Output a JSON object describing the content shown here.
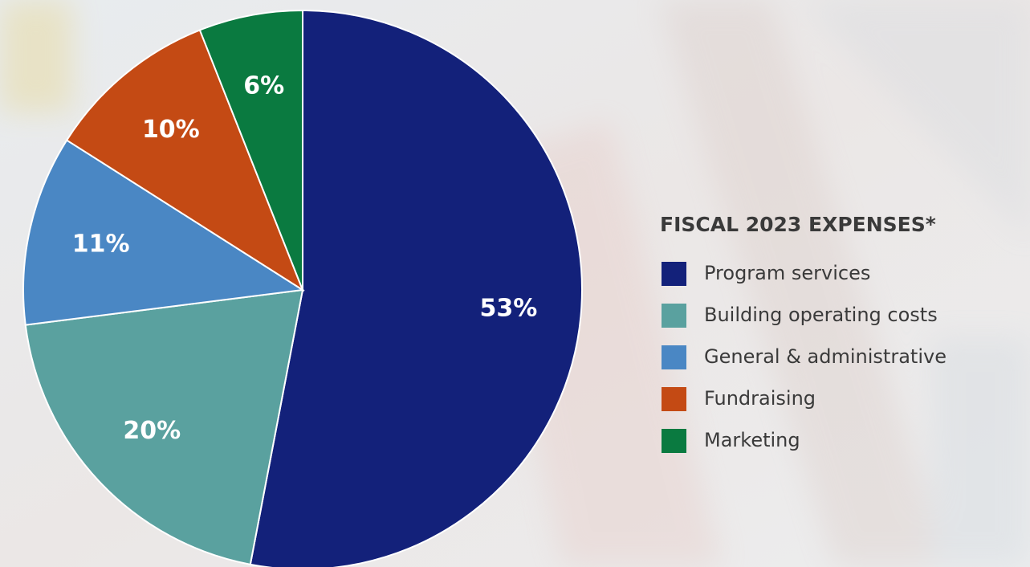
{
  "chart_data": {
    "type": "pie",
    "title": "FISCAL 2023 EXPENSES*",
    "categories": [
      "Program services",
      "Building operating costs",
      "General & administrative",
      "Fundraising",
      "Marketing"
    ],
    "values": [
      53,
      20,
      11,
      10,
      6
    ],
    "value_labels": [
      "53%",
      "20%",
      "11%",
      "10%",
      "6%"
    ],
    "colors": [
      "#13217a",
      "#5aa19f",
      "#4a87c4",
      "#c44a14",
      "#0a7a40"
    ]
  }
}
